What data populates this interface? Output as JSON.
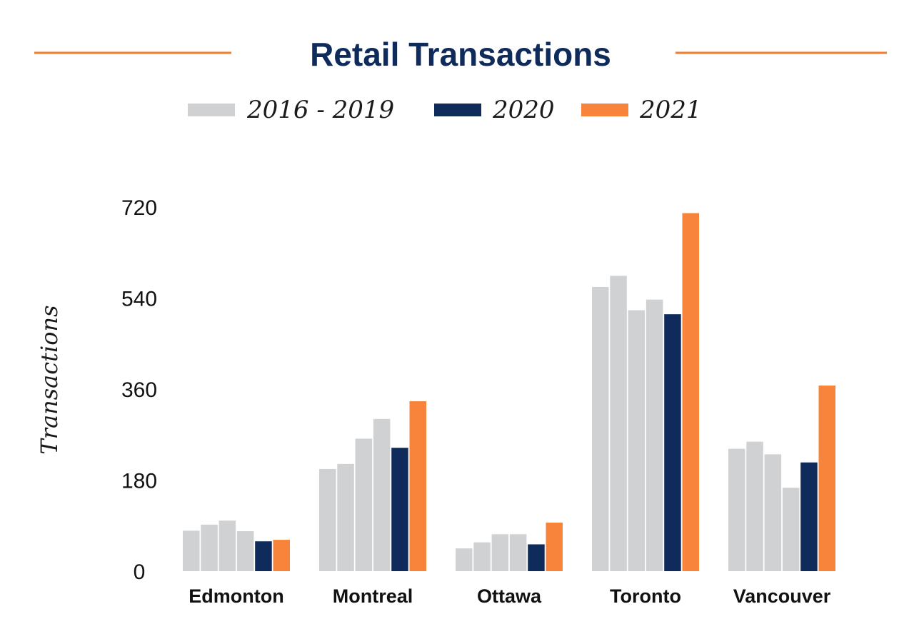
{
  "colors": {
    "title": "#0f2b5b",
    "rule": "#f47b2a",
    "history": "#cfd1d2",
    "y2020": "#0f2b5b",
    "y2021": "#f7843a"
  },
  "chart_data": {
    "type": "bar",
    "title": "Retail Transactions",
    "ylabel": "Transactions",
    "xlabel": "",
    "ylim": [
      0,
      720
    ],
    "yticks": [
      0,
      180,
      360,
      540,
      720
    ],
    "grid": false,
    "legend_position": "top",
    "legend": [
      {
        "label": "2016 - 2019",
        "color_key": "history"
      },
      {
        "label": "2020",
        "color_key": "y2020"
      },
      {
        "label": "2021",
        "color_key": "y2021"
      }
    ],
    "categories": [
      "Edmonton",
      "Montreal",
      "Ottawa",
      "Toronto",
      "Vancouver"
    ],
    "series": [
      {
        "name": "2016",
        "legend_group": "2016 - 2019",
        "color_key": "history",
        "values": [
          80,
          202,
          45,
          562,
          242
        ]
      },
      {
        "name": "2017",
        "legend_group": "2016 - 2019",
        "color_key": "history",
        "values": [
          92,
          212,
          57,
          584,
          256
        ]
      },
      {
        "name": "2018",
        "legend_group": "2016 - 2019",
        "color_key": "history",
        "values": [
          100,
          262,
          73,
          516,
          231
        ]
      },
      {
        "name": "2019",
        "legend_group": "2016 - 2019",
        "color_key": "history",
        "values": [
          79,
          301,
          73,
          537,
          165
        ]
      },
      {
        "name": "2020",
        "legend_group": "2020",
        "color_key": "y2020",
        "values": [
          59,
          244,
          53,
          508,
          215
        ]
      },
      {
        "name": "2021",
        "legend_group": "2021",
        "color_key": "y2021",
        "values": [
          62,
          336,
          96,
          708,
          367
        ]
      }
    ]
  }
}
